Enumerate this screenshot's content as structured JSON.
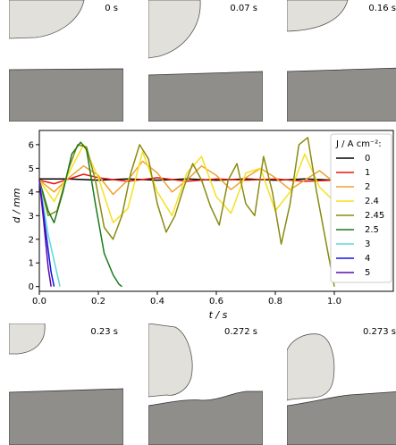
{
  "snapshots": [
    {
      "time": "0 s"
    },
    {
      "time": "0.07 s"
    },
    {
      "time": "0.16 s"
    },
    {
      "time": "0.23 s"
    },
    {
      "time": "0.272 s"
    },
    {
      "time": "0.273 s"
    }
  ],
  "colors": {
    "droplet_fill": "#e2e0da",
    "substrate_fill": "#8f8e8a"
  },
  "chart_data": {
    "type": "line",
    "title": "",
    "xlabel": "t / s",
    "ylabel": "d / mm",
    "xlim": [
      0,
      1.2
    ],
    "ylim": [
      -0.2,
      6.6
    ],
    "xticks": [
      "0.0",
      "0.2",
      "0.4",
      "0.6",
      "0.8",
      "1.0"
    ],
    "yticks": [
      "0",
      "1",
      "2",
      "3",
      "4",
      "5",
      "6"
    ],
    "grid": false,
    "legend": {
      "title": "J / A cm⁻²:",
      "placement": "right"
    },
    "series": [
      {
        "name": "0",
        "color": "#000000",
        "x": [
          0,
          0.1,
          0.2,
          0.3,
          0.4,
          0.5,
          0.6,
          0.7,
          0.8,
          0.9,
          1.0
        ],
        "y": [
          4.55,
          4.55,
          4.5,
          4.55,
          4.5,
          4.55,
          4.5,
          4.55,
          4.5,
          4.55,
          4.5
        ]
      },
      {
        "name": "1",
        "color": "#e8160c",
        "x": [
          0,
          0.05,
          0.1,
          0.15,
          0.2,
          0.3,
          0.4,
          0.5,
          0.6,
          0.7,
          0.8,
          0.9,
          1.0
        ],
        "y": [
          4.5,
          4.35,
          4.55,
          4.75,
          4.6,
          4.45,
          4.6,
          4.45,
          4.55,
          4.5,
          4.55,
          4.45,
          4.5
        ]
      },
      {
        "name": "2",
        "color": "#f0a030",
        "x": [
          0,
          0.05,
          0.1,
          0.15,
          0.2,
          0.25,
          0.3,
          0.35,
          0.4,
          0.45,
          0.5,
          0.55,
          0.6,
          0.65,
          0.7,
          0.75,
          0.8,
          0.85,
          0.9,
          0.95,
          1.0
        ],
        "y": [
          4.5,
          4.0,
          4.6,
          5.1,
          4.7,
          3.9,
          4.5,
          5.3,
          4.8,
          4.0,
          4.5,
          5.1,
          4.7,
          4.1,
          4.6,
          5.0,
          4.6,
          4.1,
          4.5,
          4.9,
          4.4
        ]
      },
      {
        "name": "2.4",
        "color": "#f6e020",
        "x": [
          0,
          0.05,
          0.1,
          0.15,
          0.2,
          0.25,
          0.3,
          0.35,
          0.4,
          0.45,
          0.5,
          0.55,
          0.6,
          0.65,
          0.7,
          0.75,
          0.8,
          0.85,
          0.9,
          0.95,
          1.0
        ],
        "y": [
          4.5,
          3.6,
          4.8,
          6.0,
          4.6,
          2.7,
          3.3,
          5.7,
          4.0,
          3.0,
          4.8,
          5.5,
          3.8,
          3.1,
          4.8,
          5.0,
          3.2,
          4.0,
          5.6,
          4.2,
          3.6
        ]
      },
      {
        "name": "2.45",
        "color": "#8a8a10",
        "x": [
          0,
          0.03,
          0.06,
          0.1,
          0.13,
          0.16,
          0.19,
          0.22,
          0.25,
          0.28,
          0.31,
          0.34,
          0.37,
          0.4,
          0.43,
          0.46,
          0.49,
          0.52,
          0.55,
          0.58,
          0.61,
          0.64,
          0.67,
          0.7,
          0.73,
          0.76,
          0.79,
          0.82,
          0.85,
          0.88,
          0.91,
          0.94,
          0.97,
          1.0
        ],
        "y": [
          4.5,
          3.0,
          3.2,
          5.0,
          6.0,
          5.9,
          4.5,
          2.5,
          2.0,
          3.0,
          4.8,
          6.0,
          5.4,
          3.5,
          2.3,
          3.0,
          4.2,
          5.2,
          4.5,
          3.4,
          2.6,
          4.5,
          5.2,
          3.5,
          3.0,
          5.5,
          4.0,
          1.8,
          3.5,
          6.0,
          6.3,
          4.0,
          2.0,
          0.0
        ]
      },
      {
        "name": "2.5",
        "color": "#1a7a1a",
        "x": [
          0,
          0.03,
          0.05,
          0.08,
          0.11,
          0.14,
          0.16,
          0.19,
          0.22,
          0.25,
          0.27,
          0.28
        ],
        "y": [
          4.5,
          3.2,
          2.7,
          4.0,
          5.6,
          6.1,
          5.8,
          3.5,
          1.4,
          0.5,
          0.1,
          0.0
        ]
      },
      {
        "name": "3",
        "color": "#5cd8dc",
        "x": [
          0,
          0.03,
          0.05,
          0.07
        ],
        "y": [
          4.5,
          2.2,
          1.1,
          0.0
        ]
      },
      {
        "name": "4",
        "color": "#1414e6",
        "x": [
          0,
          0.02,
          0.04,
          0.05
        ],
        "y": [
          4.5,
          2.5,
          0.6,
          0.0
        ]
      },
      {
        "name": "5",
        "color": "#5a0aa8",
        "x": [
          0,
          0.015,
          0.03,
          0.04
        ],
        "y": [
          4.5,
          2.7,
          0.8,
          0.0
        ]
      }
    ]
  }
}
